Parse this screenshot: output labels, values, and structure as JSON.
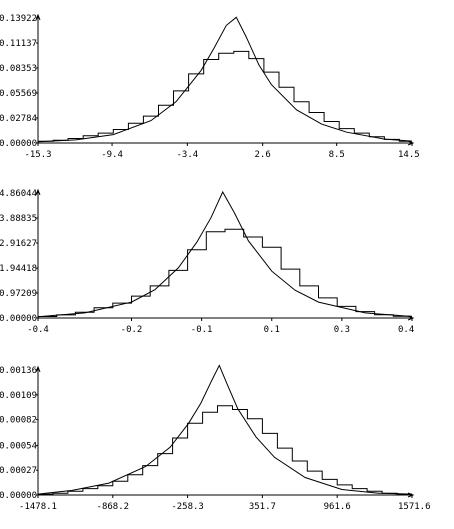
{
  "chart_data": [
    {
      "type": "line",
      "title": "",
      "xlabel": "",
      "ylabel": "",
      "xlim": [
        -15.3,
        14.5
      ],
      "ylim": [
        0,
        0.13922
      ],
      "x_ticks": [
        -15.3,
        -9.4,
        -3.4,
        2.6,
        8.5,
        14.5
      ],
      "x_tick_labels": [
        "-15.3",
        "-9.4",
        "-3.4",
        "2.6",
        "8.5",
        "14.5"
      ],
      "y_ticks": [
        0,
        0.02784,
        0.05569,
        0.08353,
        0.11137,
        0.13922
      ],
      "y_tick_labels": [
        "0.00000",
        "0.02784",
        "0.05569",
        "0.08353",
        "0.11137",
        "0.13922"
      ],
      "grid": false,
      "series": [
        {
          "kind": "curve",
          "x": [
            -15.3,
            -12.3,
            -9.3,
            -6.3,
            -4.3,
            -2.3,
            -1.3,
            -0.3,
            0.5,
            1.3,
            2.3,
            3.3,
            5.3,
            7.3,
            9.3,
            12.3,
            14.5
          ],
          "values": [
            0.0013,
            0.0035,
            0.0093,
            0.025,
            0.046,
            0.081,
            0.105,
            0.131,
            0.14,
            0.118,
            0.087,
            0.065,
            0.037,
            0.021,
            0.012,
            0.0043,
            0.0021
          ]
        },
        {
          "kind": "step",
          "x": [
            -15.3,
            -14.1,
            -12.9,
            -11.7,
            -10.5,
            -9.3,
            -8.1,
            -6.9,
            -5.7,
            -4.5,
            -3.3,
            -2.1,
            -0.9,
            0.3,
            1.5,
            2.7,
            3.9,
            5.1,
            6.3,
            7.5,
            8.7,
            9.9,
            11.1,
            12.3,
            13.5
          ],
          "values": [
            0.002,
            0.003,
            0.005,
            0.008,
            0.011,
            0.015,
            0.022,
            0.03,
            0.042,
            0.058,
            0.077,
            0.093,
            0.1,
            0.102,
            0.094,
            0.079,
            0.062,
            0.046,
            0.034,
            0.024,
            0.016,
            0.011,
            0.007,
            0.004,
            0.002
          ]
        }
      ]
    },
    {
      "type": "line",
      "title": "",
      "xlabel": "",
      "ylabel": "",
      "xlim": [
        -0.4,
        0.4
      ],
      "ylim": [
        0,
        4.86044
      ],
      "x_ticks": [
        -0.4,
        -0.2,
        -0.05,
        0.1,
        0.25,
        0.4
      ],
      "x_tick_labels": [
        "-0.4",
        "-0.2",
        "-0.1",
        "0.1",
        "0.3",
        "0.4"
      ],
      "y_ticks": [
        0,
        0.97209,
        1.94418,
        2.91627,
        3.88835,
        4.86044
      ],
      "y_tick_labels": [
        "0.00000",
        "0.97209",
        "1.94418",
        "2.91627",
        "3.88835",
        "4.86044"
      ],
      "grid": false,
      "series": [
        {
          "kind": "curve",
          "x": [
            -0.4,
            -0.3,
            -0.2,
            -0.15,
            -0.1,
            -0.06,
            -0.03,
            -0.005,
            0.02,
            0.05,
            0.1,
            0.15,
            0.2,
            0.3,
            0.4
          ],
          "values": [
            0.05,
            0.2,
            0.62,
            1.1,
            1.95,
            2.95,
            3.9,
            4.9,
            4.1,
            3.0,
            1.82,
            1.08,
            0.62,
            0.2,
            0.06
          ]
        },
        {
          "kind": "step",
          "x": [
            -0.4,
            -0.36,
            -0.32,
            -0.28,
            -0.24,
            -0.2,
            -0.16,
            -0.12,
            -0.08,
            -0.04,
            0.0,
            0.04,
            0.08,
            0.12,
            0.16,
            0.2,
            0.24,
            0.28,
            0.32,
            0.36
          ],
          "values": [
            0.06,
            0.12,
            0.22,
            0.4,
            0.58,
            0.85,
            1.25,
            1.85,
            2.65,
            3.35,
            3.45,
            3.15,
            2.75,
            1.9,
            1.25,
            0.78,
            0.45,
            0.25,
            0.13,
            0.07
          ]
        }
      ]
    },
    {
      "type": "line",
      "title": "",
      "xlabel": "",
      "ylabel": "",
      "xlim": [
        -1478.1,
        1571.6
      ],
      "ylim": [
        0,
        0.00136
      ],
      "x_ticks": [
        -1478.1,
        -868.2,
        -258.3,
        351.7,
        961.6,
        1571.6
      ],
      "x_tick_labels": [
        "-1478.1",
        "-868.2",
        "-258.3",
        "351.7",
        "961.6",
        "1571.6"
      ],
      "y_ticks": [
        0,
        0.00027,
        0.00054,
        0.00082,
        0.00109,
        0.00136
      ],
      "y_tick_labels": [
        "0.00000",
        "0.00027",
        "0.00054",
        "0.00082",
        "0.00109",
        "0.00136"
      ],
      "grid": false,
      "series": [
        {
          "kind": "curve",
          "x": [
            -1478.1,
            -1200,
            -900,
            -600,
            -400,
            -250,
            -150,
            -60,
            0,
            60,
            150,
            300,
            450,
            700,
            1000,
            1300,
            1571.6
          ],
          "values": [
            1e-05,
            5e-05,
            0.00013,
            0.00031,
            0.00052,
            0.00078,
            0.001,
            0.00125,
            0.00141,
            0.00122,
            0.00094,
            0.00063,
            0.00041,
            0.00019,
            6e-05,
            2e-05,
            1e-05
          ]
        },
        {
          "kind": "step",
          "x": [
            -1478.1,
            -1356.1,
            -1234.1,
            -1112.1,
            -990.1,
            -868.2,
            -746.2,
            -624.2,
            -502.2,
            -380.2,
            -258.3,
            -136.3,
            -14.3,
            107.7,
            229.7,
            351.7,
            473.7,
            595.7,
            717.7,
            839.7,
            961.6,
            1083.6,
            1205.6,
            1327.6,
            1449.6
          ],
          "values": [
            1e-05,
            2e-05,
            4e-05,
            7e-05,
            0.0001,
            0.00015,
            0.00022,
            0.00032,
            0.00045,
            0.00062,
            0.00078,
            0.0009,
            0.00097,
            0.00093,
            0.00083,
            0.00067,
            0.00051,
            0.00037,
            0.00026,
            0.00017,
            0.00011,
            7e-05,
            4e-05,
            2e-05,
            1e-05
          ]
        }
      ]
    }
  ]
}
